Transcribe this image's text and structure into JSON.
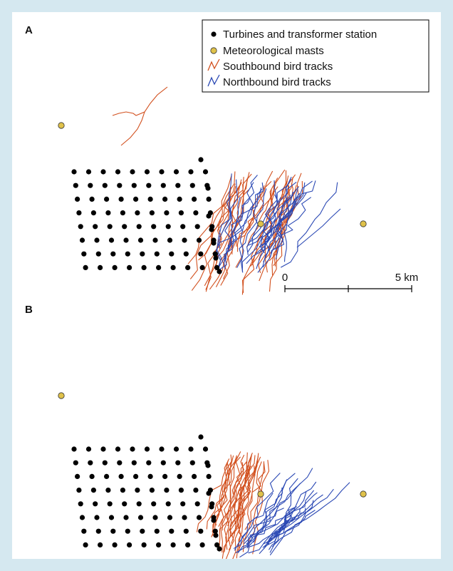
{
  "panels": [
    {
      "label": "A"
    },
    {
      "label": "B"
    }
  ],
  "legend": {
    "items": [
      {
        "label": "Turbines and transformer station",
        "symbol": "black-dot",
        "color": "#000000"
      },
      {
        "label": "Meteorological masts",
        "symbol": "yellow-dot",
        "color": "#e0c24a"
      },
      {
        "label": "Southbound bird tracks",
        "symbol": "red-line",
        "color": "#d2501e"
      },
      {
        "label": "Northbound bird tracks",
        "symbol": "blue-line",
        "color": "#2a48b4"
      }
    ]
  },
  "scale_bar": {
    "start_label": "0",
    "end_label": "5 km"
  },
  "colors": {
    "background": "#d5e8f0",
    "turbine": "#000000",
    "mast": "#e0c24a",
    "southbound": "#d2501e",
    "northbound": "#2a48b4"
  }
}
